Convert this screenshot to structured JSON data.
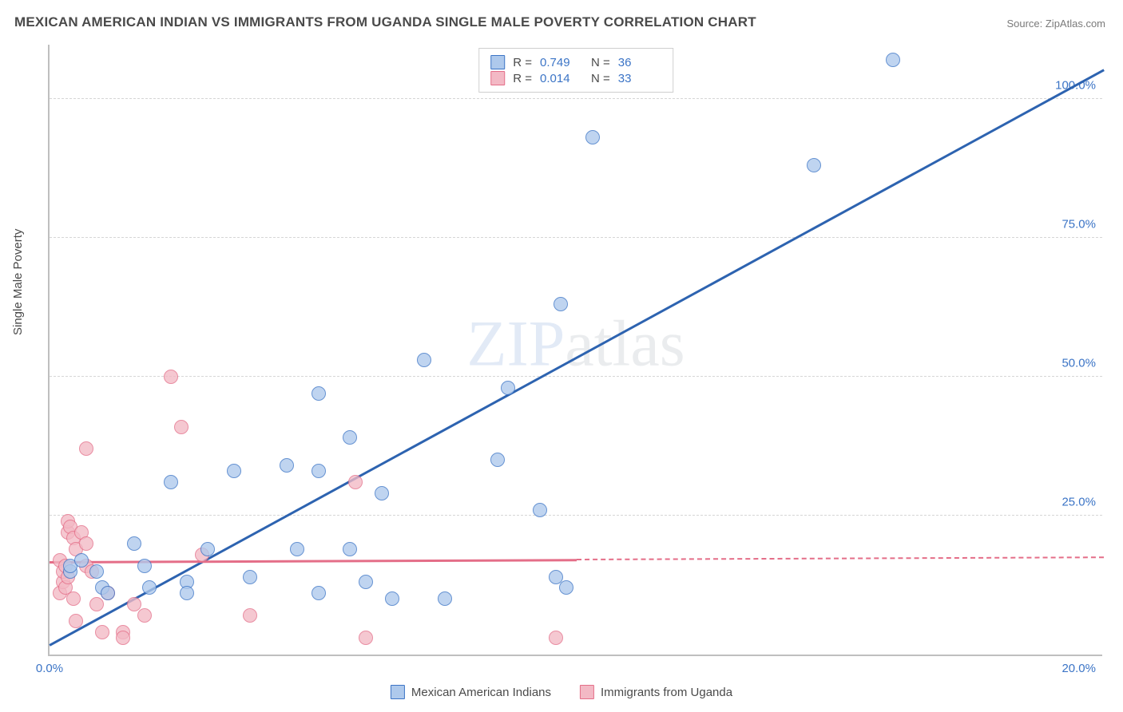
{
  "title": "MEXICAN AMERICAN INDIAN VS IMMIGRANTS FROM UGANDA SINGLE MALE POVERTY CORRELATION CHART",
  "source": "Source: ZipAtlas.com",
  "ylabel": "Single Male Poverty",
  "watermark_a": "ZIP",
  "watermark_b": "atlas",
  "chart": {
    "type": "scatter",
    "background_color": "#ffffff",
    "grid_color": "#d6d6d6",
    "axis_color": "#bfbfbf",
    "xlim": [
      0,
      20
    ],
    "ylim": [
      0,
      110
    ],
    "xticks": [
      {
        "pos": 0,
        "label": "0.0%"
      },
      {
        "pos": 20,
        "label": "20.0%"
      }
    ],
    "yticks": [
      {
        "pos": 25,
        "label": "25.0%"
      },
      {
        "pos": 50,
        "label": "50.0%"
      },
      {
        "pos": 75,
        "label": "75.0%"
      },
      {
        "pos": 100,
        "label": "100.0%"
      }
    ],
    "series": [
      {
        "name": "Mexican American Indians",
        "fill": "#aec9ec",
        "stroke": "#3b74c6",
        "R": "0.749",
        "N": "36",
        "trend": {
          "x1": 0,
          "y1": 1.5,
          "x2": 20,
          "y2": 105,
          "color": "#2d63b0",
          "dash_from_x": null
        },
        "points": [
          [
            0.4,
            15
          ],
          [
            0.4,
            16
          ],
          [
            0.6,
            17
          ],
          [
            0.9,
            15
          ],
          [
            1.0,
            12
          ],
          [
            1.1,
            11
          ],
          [
            1.6,
            20
          ],
          [
            1.8,
            16
          ],
          [
            1.9,
            12
          ],
          [
            2.3,
            31
          ],
          [
            2.6,
            13
          ],
          [
            2.6,
            11
          ],
          [
            3.0,
            19
          ],
          [
            3.5,
            33
          ],
          [
            3.8,
            14
          ],
          [
            4.5,
            34
          ],
          [
            4.7,
            19
          ],
          [
            5.1,
            33
          ],
          [
            5.1,
            47
          ],
          [
            5.1,
            11
          ],
          [
            5.7,
            39
          ],
          [
            5.7,
            19
          ],
          [
            6.0,
            13
          ],
          [
            6.3,
            29
          ],
          [
            6.5,
            10
          ],
          [
            7.1,
            53
          ],
          [
            7.5,
            10
          ],
          [
            8.5,
            35
          ],
          [
            8.7,
            48
          ],
          [
            9.3,
            26
          ],
          [
            9.7,
            63
          ],
          [
            9.8,
            12
          ],
          [
            10.3,
            93
          ],
          [
            14.5,
            88
          ],
          [
            16.0,
            107
          ],
          [
            9.6,
            14
          ]
        ]
      },
      {
        "name": "Immigrants from Uganda",
        "fill": "#f3b9c5",
        "stroke": "#e46e88",
        "R": "0.014",
        "N": "33",
        "trend": {
          "x1": 0,
          "y1": 16.5,
          "x2": 20,
          "y2": 17.3,
          "color": "#e46e88",
          "dash_from_x": 10
        },
        "points": [
          [
            0.2,
            11
          ],
          [
            0.2,
            17
          ],
          [
            0.25,
            13
          ],
          [
            0.25,
            15
          ],
          [
            0.3,
            16
          ],
          [
            0.3,
            12
          ],
          [
            0.35,
            14
          ],
          [
            0.35,
            22
          ],
          [
            0.35,
            24
          ],
          [
            0.4,
            23
          ],
          [
            0.45,
            10
          ],
          [
            0.45,
            21
          ],
          [
            0.5,
            6
          ],
          [
            0.5,
            19
          ],
          [
            0.6,
            22
          ],
          [
            0.7,
            16
          ],
          [
            0.7,
            20
          ],
          [
            0.7,
            37
          ],
          [
            0.8,
            15
          ],
          [
            0.9,
            9
          ],
          [
            1.0,
            4
          ],
          [
            1.1,
            11
          ],
          [
            1.4,
            4
          ],
          [
            1.4,
            3
          ],
          [
            1.6,
            9
          ],
          [
            1.8,
            7
          ],
          [
            2.3,
            50
          ],
          [
            2.5,
            41
          ],
          [
            2.9,
            18
          ],
          [
            3.8,
            7
          ],
          [
            5.8,
            31
          ],
          [
            6.0,
            3
          ],
          [
            9.6,
            3
          ]
        ]
      }
    ],
    "legend_top_labels": {
      "R": "R =",
      "N": "N ="
    },
    "marker_radius": 9,
    "title_fontsize": 17,
    "label_fontsize": 15,
    "tick_color": "#3b74c6"
  }
}
